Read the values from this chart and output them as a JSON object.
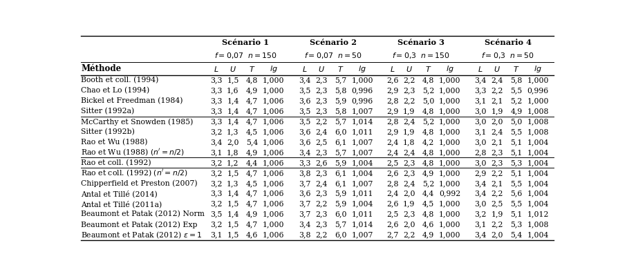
{
  "scenarios": [
    "Scénario 1",
    "Scénario 2",
    "Scénario 3",
    "Scénario 4"
  ],
  "scenario_subs": [
    "f = 0,07  n = 150",
    "f = 0,07  n = 50",
    "f = 0,3  n = 150",
    "f = 0,3  n = 50"
  ],
  "col_headers_italic": [
    "L",
    "U",
    "T",
    "lg"
  ],
  "methods": [
    "Booth et coll. (1994)",
    "Chao et Lo (1994)",
    "Bickel et Freedman (1984)",
    "Sitter (1992a)",
    "McCarthy et Snowden (1985)",
    "Sitter (1992b)",
    "Rao et Wu (1988)",
    "Rao et Wu (1988) (n' = n/2)",
    "Rao et coll. (1992)",
    "Rao et coll. (1992) (n' = n/2)",
    "Chipperfield et Preston (2007)",
    "Antal et Tillé (2014)",
    "Antal et Tillé (2011a)",
    "Beaumont et Patak (2012) Norm",
    "Beaumont et Patak (2012) Exp",
    "Beaumont et Patak (2012) ε = 1"
  ],
  "methods_display": [
    "Booth et coll. (1994)",
    "Chao et Lo (1994)",
    "Bickel et Freedman (1984)",
    "Sitter (1992a)",
    "McCarthy et Snowden (1985)",
    "Sitter (1992b)",
    "Rao et Wu (1988)",
    "Rao et Wu (1988) $(n^{\\prime}=n/2)$",
    "Rao et coll. (1992)",
    "Rao et coll. (1992) $(n^{\\prime}=n/2)$",
    "Chipperfield et Preston (2007)",
    "Antal et Tillé (2014)",
    "Antal et Tillé (2011a)",
    "Beaumont et Patak (2012) Norm",
    "Beaumont et Patak (2012) Exp",
    "Beaumont et Patak (2012) $\\epsilon=1$"
  ],
  "data": [
    [
      "3,3",
      "1,5",
      "4,8",
      "1,000",
      "3,4",
      "2,3",
      "5,7",
      "1,000",
      "2,6",
      "2,2",
      "4,8",
      "1,000",
      "3,4",
      "2,4",
      "5,8",
      "1,000"
    ],
    [
      "3,3",
      "1,6",
      "4,9",
      "1,000",
      "3,5",
      "2,3",
      "5,8",
      "0,996",
      "2,9",
      "2,3",
      "5,2",
      "1,000",
      "3,3",
      "2,2",
      "5,5",
      "0,996"
    ],
    [
      "3,3",
      "1,4",
      "4,7",
      "1,006",
      "3,6",
      "2,3",
      "5,9",
      "0,996",
      "2,8",
      "2,2",
      "5,0",
      "1,000",
      "3,1",
      "2,1",
      "5,2",
      "1,000"
    ],
    [
      "3,3",
      "1,4",
      "4,7",
      "1,006",
      "3,5",
      "2,3",
      "5,8",
      "1,007",
      "2,9",
      "1,9",
      "4,8",
      "1,000",
      "3,0",
      "1,9",
      "4,9",
      "1,008"
    ],
    [
      "3,3",
      "1,4",
      "4,7",
      "1,006",
      "3,5",
      "2,2",
      "5,7",
      "1,014",
      "2,8",
      "2,4",
      "5,2",
      "1,000",
      "3,0",
      "2,0",
      "5,0",
      "1,008"
    ],
    [
      "3,2",
      "1,3",
      "4,5",
      "1,006",
      "3,6",
      "2,4",
      "6,0",
      "1,011",
      "2,9",
      "1,9",
      "4,8",
      "1,000",
      "3,1",
      "2,4",
      "5,5",
      "1,008"
    ],
    [
      "3,4",
      "2,0",
      "5,4",
      "1,006",
      "3,6",
      "2,5",
      "6,1",
      "1,007",
      "2,4",
      "1,8",
      "4,2",
      "1,000",
      "3,0",
      "2,1",
      "5,1",
      "1,004"
    ],
    [
      "3,1",
      "1,8",
      "4,9",
      "1,006",
      "3,4",
      "2,3",
      "5,7",
      "1,007",
      "2,4",
      "2,4",
      "4,8",
      "1,000",
      "2,8",
      "2,3",
      "5,1",
      "1,004"
    ],
    [
      "3,2",
      "1,2",
      "4,4",
      "1,006",
      "3,3",
      "2,6",
      "5,9",
      "1,004",
      "2,5",
      "2,3",
      "4,8",
      "1,000",
      "3,0",
      "2,3",
      "5,3",
      "1,004"
    ],
    [
      "3,2",
      "1,5",
      "4,7",
      "1,006",
      "3,8",
      "2,3",
      "6,1",
      "1,004",
      "2,6",
      "2,3",
      "4,9",
      "1,000",
      "2,9",
      "2,2",
      "5,1",
      "1,004"
    ],
    [
      "3,2",
      "1,3",
      "4,5",
      "1,006",
      "3,7",
      "2,4",
      "6,1",
      "1,007",
      "2,8",
      "2,4",
      "5,2",
      "1,000",
      "3,4",
      "2,1",
      "5,5",
      "1,004"
    ],
    [
      "3,3",
      "1,4",
      "4,7",
      "1,006",
      "3,6",
      "2,3",
      "5,9",
      "1,011",
      "2,4",
      "2,0",
      "4,4",
      "0,992",
      "3,4",
      "2,2",
      "5,6",
      "1,004"
    ],
    [
      "3,2",
      "1,5",
      "4,7",
      "1,006",
      "3,7",
      "2,2",
      "5,9",
      "1,004",
      "2,6",
      "1,9",
      "4,5",
      "1,000",
      "3,0",
      "2,5",
      "5,5",
      "1,004"
    ],
    [
      "3,5",
      "1,4",
      "4,9",
      "1,006",
      "3,7",
      "2,3",
      "6,0",
      "1,011",
      "2,5",
      "2,3",
      "4,8",
      "1,000",
      "3,2",
      "1,9",
      "5,1",
      "1,012"
    ],
    [
      "3,2",
      "1,5",
      "4,7",
      "1,000",
      "3,4",
      "2,3",
      "5,7",
      "1,014",
      "2,6",
      "2,0",
      "4,6",
      "1,000",
      "3,1",
      "2,2",
      "5,3",
      "1,008"
    ],
    [
      "3,1",
      "1,5",
      "4,6",
      "1,006",
      "3,8",
      "2,2",
      "6,0",
      "1,007",
      "2,7",
      "2,2",
      "4,9",
      "1,000",
      "3,4",
      "2,0",
      "5,4",
      "1,004"
    ]
  ],
  "group_separators_after": [
    3,
    7,
    8
  ],
  "bg_color": "#ffffff"
}
